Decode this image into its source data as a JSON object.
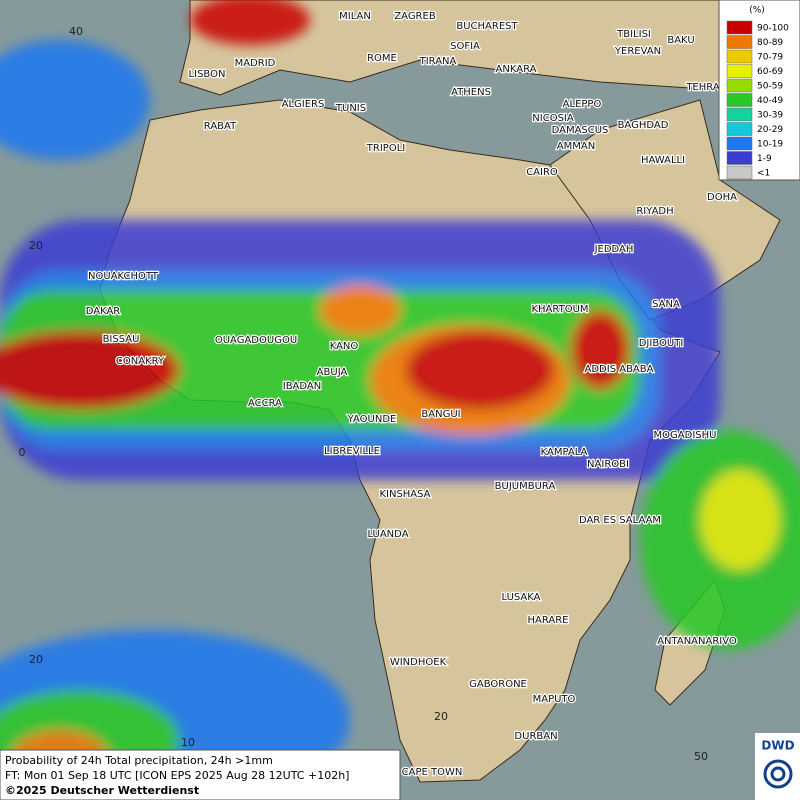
{
  "map": {
    "cities": [
      "MILAN",
      "ZAGREB",
      "BUCHAREST",
      "TBILISI",
      "BAKU",
      "YEREVAN",
      "LISBON",
      "MADRID",
      "ROME",
      "SOFIA",
      "TIRANA",
      "ANKARA",
      "TEHRA",
      "ATHENS",
      "ALGIERS",
      "TUNIS",
      "RABAT",
      "ALEPPO",
      "NICOSIA",
      "BAGHDAD",
      "TRIPOLI",
      "DAMASCUS",
      "AMMAN",
      "HAWALLI",
      "CAIRO",
      "DOHA",
      "RIYADH",
      "JEDDAH",
      "SANA",
      "NOUAKCHOTT",
      "DAKAR",
      "KHARTOUM",
      "DJIBOUTI",
      "BISSAU",
      "OUAGADOUGOU",
      "KANO",
      "CONAKRY",
      "ABUJA",
      "ADDIS ABABA",
      "IBADAN",
      "ACCRA",
      "YAOUNDE",
      "BANGUI",
      "MOGADISHU",
      "LIBREVILLE",
      "KAMPALA",
      "NAIROBI",
      "KINSHASA",
      "BUJUMBURA",
      "DAR ES SALAAM",
      "LUANDA",
      "LUSAKA",
      "HARARE",
      "ANTANANARIVO",
      "WINDHOEK",
      "GABORONE",
      "MAPUTO",
      "DURBAN",
      "CAPE TOWN"
    ],
    "grid_labels": [
      "40",
      "20",
      "0",
      "20",
      "10",
      "20",
      "50"
    ]
  },
  "legend": {
    "unit": "(%)",
    "items": [
      {
        "label": "90-100",
        "color": "#c80000"
      },
      {
        "label": "80-89",
        "color": "#f07800"
      },
      {
        "label": "70-79",
        "color": "#f0c800"
      },
      {
        "label": "60-69",
        "color": "#e6f000"
      },
      {
        "label": "50-59",
        "color": "#96dc00"
      },
      {
        "label": "40-49",
        "color": "#28c828"
      },
      {
        "label": "30-39",
        "color": "#14d2a0"
      },
      {
        "label": "20-29",
        "color": "#14c8dc"
      },
      {
        "label": "10-19",
        "color": "#1e78f0"
      },
      {
        "label": "1-9",
        "color": "#3c3cd2"
      },
      {
        "label": "<1",
        "color": "#c8c8c8"
      }
    ]
  },
  "footer": {
    "lines": [
      "Probability of 24h Total precipitation, 24h >1mm",
      "FT: Mon 01 Sep 18 UTC [ICON EPS 2025 Aug 28 12UTC +102h]",
      "©2025 Deutscher Wetterdienst"
    ]
  },
  "logo": "DWD"
}
